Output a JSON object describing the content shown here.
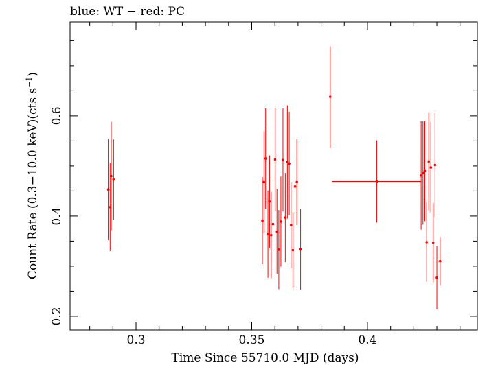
{
  "chart_data": {
    "type": "scatter",
    "title": "blue: WT − red: PC",
    "xlabel": "Time Since 55710.0 MJD (days)",
    "ylabel": "Count Rate (0.3−10.0 keV)(cts s",
    "ylabel_unit_exp": "−1",
    "ylabel_suffix": ")",
    "xlim": [
      0.2715,
      0.4475
    ],
    "ylim": [
      0.1725,
      0.7875
    ],
    "xticks": [
      {
        "value": 0.3,
        "label": "0.3"
      },
      {
        "value": 0.35,
        "label": "0.35"
      },
      {
        "value": 0.4,
        "label": "0.4"
      }
    ],
    "yticks": [
      {
        "value": 0.2,
        "label": "0.2"
      },
      {
        "value": 0.4,
        "label": "0.4"
      },
      {
        "value": 0.6,
        "label": "0.6"
      }
    ],
    "x_minor_step": 0.01,
    "y_minor_step": 0.05,
    "grid": false,
    "color": "#ff0000",
    "series": [
      {
        "points": [
          {
            "x": 0.288,
            "y": 0.453,
            "xerr": 0.0003,
            "yerr": 0.101
          },
          {
            "x": 0.2888,
            "y": 0.418,
            "xerr": 0.0003,
            "yerr": 0.088
          },
          {
            "x": 0.2893,
            "y": 0.48,
            "xerr": 0.0003,
            "yerr": 0.108
          },
          {
            "x": 0.2903,
            "y": 0.473,
            "xerr": 0.0003,
            "yerr": 0.08
          },
          {
            "x": 0.3546,
            "y": 0.391,
            "xerr": 0.0003,
            "yerr": 0.087
          },
          {
            "x": 0.3553,
            "y": 0.468,
            "xerr": 0.0003,
            "yerr": 0.102
          },
          {
            "x": 0.356,
            "y": 0.515,
            "xerr": 0.0003,
            "yerr": 0.1
          },
          {
            "x": 0.357,
            "y": 0.364,
            "xerr": 0.0003,
            "yerr": 0.087
          },
          {
            "x": 0.3577,
            "y": 0.429,
            "xerr": 0.0003,
            "yerr": 0.092
          },
          {
            "x": 0.3584,
            "y": 0.362,
            "xerr": 0.0003,
            "yerr": 0.086
          },
          {
            "x": 0.3592,
            "y": 0.384,
            "xerr": 0.0003,
            "yerr": 0.09
          },
          {
            "x": 0.3601,
            "y": 0.513,
            "xerr": 0.0003,
            "yerr": 0.102
          },
          {
            "x": 0.3609,
            "y": 0.369,
            "xerr": 0.0003,
            "yerr": 0.085
          },
          {
            "x": 0.3617,
            "y": 0.333,
            "xerr": 0.0003,
            "yerr": 0.079
          },
          {
            "x": 0.3626,
            "y": 0.389,
            "xerr": 0.0003,
            "yerr": 0.09
          },
          {
            "x": 0.3635,
            "y": 0.512,
            "xerr": 0.0003,
            "yerr": 0.103
          },
          {
            "x": 0.3645,
            "y": 0.397,
            "xerr": 0.0003,
            "yerr": 0.089
          },
          {
            "x": 0.3654,
            "y": 0.508,
            "xerr": 0.0003,
            "yerr": 0.113
          },
          {
            "x": 0.3662,
            "y": 0.505,
            "xerr": 0.0003,
            "yerr": 0.103
          },
          {
            "x": 0.367,
            "y": 0.382,
            "xerr": 0.0003,
            "yerr": 0.086
          },
          {
            "x": 0.3678,
            "y": 0.332,
            "xerr": 0.0003,
            "yerr": 0.076
          },
          {
            "x": 0.3687,
            "y": 0.459,
            "xerr": 0.0003,
            "yerr": 0.094
          },
          {
            "x": 0.3695,
            "y": 0.468,
            "xerr": 0.0003,
            "yerr": 0.086
          },
          {
            "x": 0.3711,
            "y": 0.334,
            "xerr": 0.0003,
            "yerr": 0.081
          },
          {
            "x": 0.3839,
            "y": 0.638,
            "xerr": 0.0003,
            "yerr": 0.101
          },
          {
            "x": 0.404,
            "y": 0.469,
            "xerr": 0.0193,
            "yerr": 0.082
          },
          {
            "x": 0.4232,
            "y": 0.481,
            "xerr": 0.0003,
            "yerr": 0.108
          },
          {
            "x": 0.424,
            "y": 0.486,
            "xerr": 0.0003,
            "yerr": 0.103
          },
          {
            "x": 0.4248,
            "y": 0.49,
            "xerr": 0.0003,
            "yerr": 0.1
          },
          {
            "x": 0.4256,
            "y": 0.348,
            "xerr": 0.0003,
            "yerr": 0.079
          },
          {
            "x": 0.4265,
            "y": 0.509,
            "xerr": 0.0003,
            "yerr": 0.098
          },
          {
            "x": 0.4274,
            "y": 0.497,
            "xerr": 0.0003,
            "yerr": 0.09
          },
          {
            "x": 0.4284,
            "y": 0.347,
            "xerr": 0.0003,
            "yerr": 0.079
          },
          {
            "x": 0.4292,
            "y": 0.502,
            "xerr": 0.0003,
            "yerr": 0.104
          },
          {
            "x": 0.43,
            "y": 0.277,
            "xerr": 0.0003,
            "yerr": 0.063
          },
          {
            "x": 0.4314,
            "y": 0.31,
            "xerr": 0.001,
            "yerr": 0.049
          }
        ]
      }
    ]
  }
}
